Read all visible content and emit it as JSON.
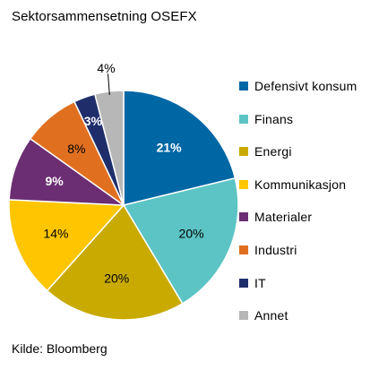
{
  "chart_data": {
    "type": "pie",
    "title": "Sektorsammensetning OSEFX",
    "source": "Kilde: Bloomberg",
    "legend_position": "right",
    "slices": [
      {
        "name": "Defensivt konsum",
        "value": 21,
        "label": "21%",
        "color": "#0067A5",
        "label_color": "#ffffff",
        "label_bold": true
      },
      {
        "name": "Finans",
        "value": 20,
        "label": "20%",
        "color": "#5CC4C4",
        "label_color": "#000000",
        "label_bold": false
      },
      {
        "name": "Energi",
        "value": 20,
        "label": "20%",
        "color": "#C8AA00",
        "label_color": "#000000",
        "label_bold": false
      },
      {
        "name": "Kommunikasjon",
        "value": 14,
        "label": "14%",
        "color": "#FFC600",
        "label_color": "#000000",
        "label_bold": false
      },
      {
        "name": "Materialer",
        "value": 9,
        "label": "9%",
        "color": "#6B2E73",
        "label_color": "#ffffff",
        "label_bold": true
      },
      {
        "name": "Industri",
        "value": 8,
        "label": "8%",
        "color": "#E07020",
        "label_color": "#000000",
        "label_bold": false
      },
      {
        "name": "IT",
        "value": 3,
        "label": "3%",
        "color": "#1F2E6B",
        "label_color": "#ffffff",
        "label_bold": true
      },
      {
        "name": "Annet",
        "value": 4,
        "label": "4%",
        "color": "#B7B7B7",
        "label_color": "#000000",
        "label_bold": false,
        "label_outside": true
      }
    ]
  }
}
